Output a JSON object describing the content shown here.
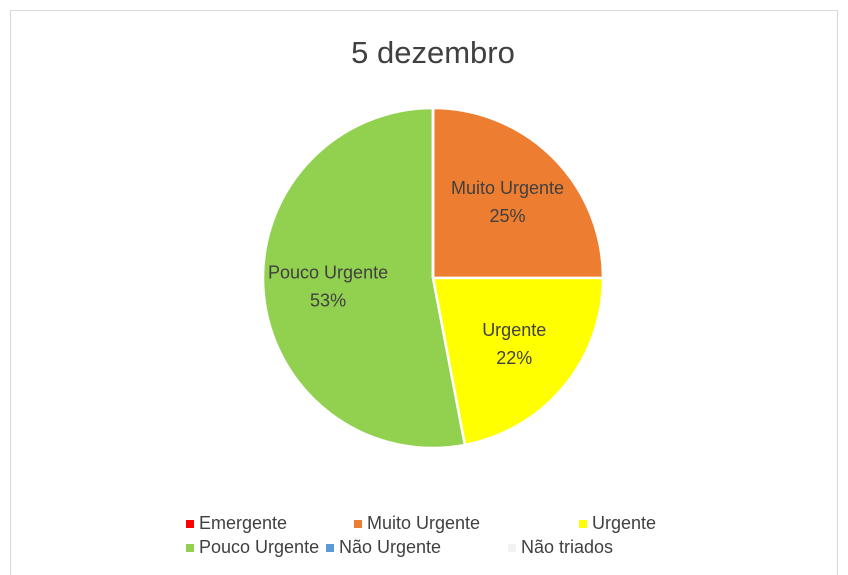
{
  "chart_data": {
    "type": "pie",
    "title": "5 dezembro",
    "categories": [
      "Emergente",
      "Muito Urgente",
      "Urgente",
      "Pouco Urgente",
      "Não Urgente",
      "Não triados"
    ],
    "values": [
      0,
      25,
      22,
      53,
      0,
      0
    ],
    "value_labels": [
      null,
      "25%",
      "22%",
      "53%",
      null,
      null
    ],
    "colors": [
      "#ff0000",
      "#ed7d31",
      "#ffff00",
      "#92d050",
      "#5b9bd5",
      "#f2f2f2"
    ],
    "legend": "bottom"
  }
}
